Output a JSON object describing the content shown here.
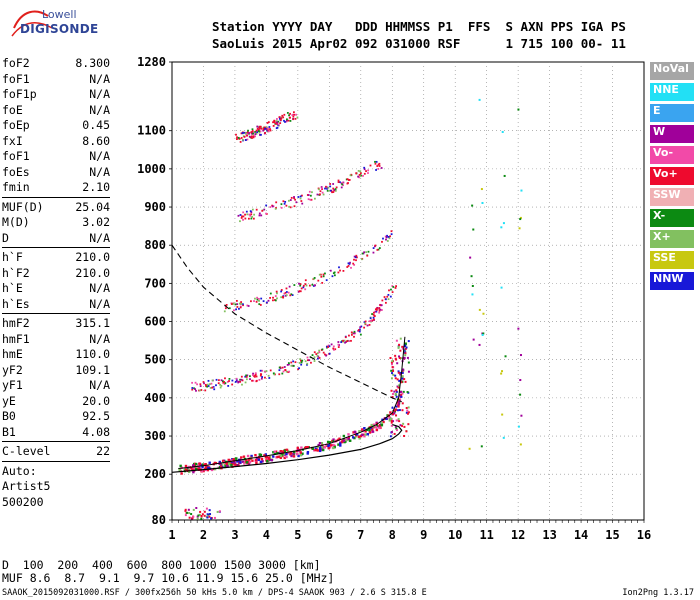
{
  "logo": {
    "line1": "Lowell",
    "line2": "DIGISONDE"
  },
  "header": {
    "line1": "Station YYYY DAY   DDD HHMMSS P1  FFS  S AXN PPS IGA PS",
    "line2": "SaoLuis 2015 Apr02 092 031000 RSF      1 715 100 00- 11"
  },
  "params": {
    "group1": [
      {
        "k": "foF2",
        "v": "8.300"
      },
      {
        "k": "foF1",
        "v": "N/A"
      },
      {
        "k": "foF1p",
        "v": "N/A"
      },
      {
        "k": "foE",
        "v": "N/A"
      },
      {
        "k": "foEp",
        "v": "0.45"
      },
      {
        "k": "fxI",
        "v": "8.60"
      },
      {
        "k": "foF1",
        "v": "N/A"
      },
      {
        "k": "foEs",
        "v": "N/A"
      },
      {
        "k": "fmin",
        "v": "2.10"
      }
    ],
    "group2": [
      {
        "k": "MUF(D)",
        "v": "25.04"
      },
      {
        "k": "M(D)",
        "v": "3.02"
      },
      {
        "k": "D",
        "v": "N/A"
      }
    ],
    "group3": [
      {
        "k": "h`F",
        "v": "210.0"
      },
      {
        "k": "h`F2",
        "v": "210.0"
      },
      {
        "k": "h`E",
        "v": "N/A"
      },
      {
        "k": "h`Es",
        "v": "N/A"
      }
    ],
    "group4": [
      {
        "k": "hmF2",
        "v": "315.1"
      },
      {
        "k": "hmF1",
        "v": "N/A"
      },
      {
        "k": "hmE",
        "v": "110.0"
      },
      {
        "k": "yF2",
        "v": "109.1"
      },
      {
        "k": "yF1",
        "v": "N/A"
      },
      {
        "k": "yE",
        "v": "20.0"
      },
      {
        "k": "B0",
        "v": "92.5"
      },
      {
        "k": "B1",
        "v": "4.08"
      }
    ],
    "group5": [
      {
        "k": "C-level",
        "v": "22"
      }
    ],
    "notes": [
      "Auto:",
      "Artist5",
      "500200"
    ]
  },
  "legend": [
    {
      "label": "NoVal",
      "color": "#a6a6a6"
    },
    {
      "label": "NNE",
      "color": "#22e0f5"
    },
    {
      "label": "E",
      "color": "#3aa4f0"
    },
    {
      "label": "W",
      "color": "#a0009a"
    },
    {
      "label": "Vo-",
      "color": "#f24aa8"
    },
    {
      "label": "Vo+",
      "color": "#ee0a2e"
    },
    {
      "label": "SSW",
      "color": "#f0b0b4"
    },
    {
      "label": "X-",
      "color": "#0c8a12"
    },
    {
      "label": "X+",
      "color": "#82c060"
    },
    {
      "label": "SSE",
      "color": "#c8c810"
    },
    {
      "label": "NNW",
      "color": "#1818d8"
    }
  ],
  "chart_data": {
    "type": "scatter",
    "xlim": [
      1,
      16
    ],
    "ylim": [
      80,
      1280
    ],
    "x_ticks": [
      1,
      2,
      3,
      4,
      5,
      6,
      7,
      8,
      9,
      10,
      11,
      12,
      13,
      14,
      15,
      16
    ],
    "y_ticks": [
      80,
      200,
      300,
      400,
      500,
      600,
      700,
      800,
      900,
      1000,
      1100,
      1280
    ],
    "grid": true,
    "legend_position": "right",
    "traces": [
      {
        "name": "F2 trace",
        "x": [
          1.2,
          2,
          3,
          4,
          5,
          6,
          7,
          7.5,
          8,
          8.2,
          8.3,
          8.4
        ],
        "y": [
          215,
          222,
          235,
          248,
          262,
          280,
          310,
          330,
          360,
          400,
          470,
          560
        ]
      },
      {
        "name": "2F2 echo",
        "x": [
          1.6,
          3,
          4,
          5,
          6,
          7,
          7.6,
          8.1
        ],
        "y": [
          430,
          445,
          465,
          490,
          530,
          580,
          640,
          700
        ]
      },
      {
        "name": "3F2 echo",
        "x": [
          2.6,
          4,
          5,
          6,
          7,
          7.6,
          8.0
        ],
        "y": [
          640,
          660,
          690,
          725,
          770,
          800,
          840
        ]
      },
      {
        "name": "4F2 echo",
        "x": [
          3.0,
          4,
          5,
          6,
          7,
          7.7
        ],
        "y": [
          870,
          895,
          920,
          950,
          990,
          1020
        ]
      },
      {
        "name": "5F2 echo",
        "x": [
          3.0,
          4,
          5
        ],
        "y": [
          1080,
          1110,
          1150
        ]
      }
    ],
    "profile_curve": {
      "x": [
        1,
        2,
        3,
        4,
        5,
        6,
        7,
        7.6,
        8.0,
        8.2,
        8.3,
        8.2,
        8.0
      ],
      "y": [
        205,
        212,
        220,
        228,
        238,
        250,
        265,
        280,
        293,
        305,
        315,
        325,
        330
      ]
    },
    "dashed_curve": {
      "x": [
        1,
        1.5,
        2,
        3,
        4,
        5,
        6,
        7,
        7.5,
        8,
        8.3
      ],
      "y": [
        800,
        740,
        690,
        620,
        570,
        525,
        480,
        440,
        420,
        400,
        390
      ]
    }
  },
  "bottom": {
    "d_label": "D",
    "d_values": "  100  200  400  600  800 1000 1500 3000 [km]",
    "muf_label": "MUF",
    "muf_values": " 8.6  8.7  9.1  9.7 10.6 11.9 15.6 25.0 [MHz]"
  },
  "footer": "SAAOK_2015092031000.RSF / 300fx256h 50 kHs 5.0 km / DPS-4 SAAOK 903 / 2.6 S 315.8 E",
  "version": "Ion2Png 1.3.17"
}
